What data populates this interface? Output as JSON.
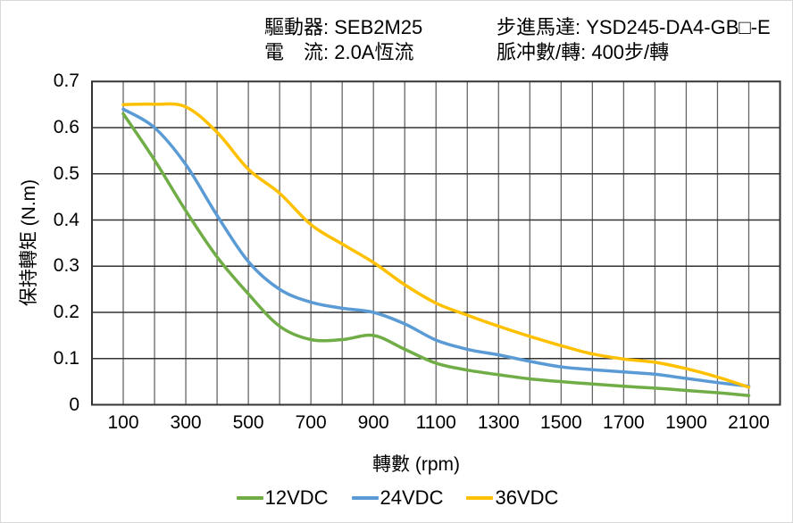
{
  "header": {
    "driver": "驅動器: SEB2M25",
    "current": "電　流: 2.0A恆流",
    "motor": "步進馬達: YSD245-DA4-GB□-E",
    "pulses": "脈冲數/轉: 400步/轉"
  },
  "chart_data": {
    "type": "line",
    "title": "",
    "xlabel": "轉數 (rpm)",
    "ylabel": "保持轉矩 (N.m)",
    "xlim": [
      0,
      2200
    ],
    "ylim": [
      0,
      0.7
    ],
    "grid": true,
    "x_grid_step": 100,
    "y_grid_step": 0.1,
    "legend_position": "bottom",
    "x_tick_labels": [
      "100",
      "300",
      "500",
      "700",
      "900",
      "1100",
      "1300",
      "1500",
      "1700",
      "1900",
      "2100"
    ],
    "x_tick_values": [
      100,
      300,
      500,
      700,
      900,
      1100,
      1300,
      1500,
      1700,
      1900,
      2100
    ],
    "y_tick_labels": [
      "0",
      "0.1",
      "0.2",
      "0.3",
      "0.4",
      "0.5",
      "0.6",
      "0.7"
    ],
    "y_tick_values": [
      0,
      0.1,
      0.2,
      0.3,
      0.4,
      0.5,
      0.6,
      0.7
    ],
    "x": [
      100,
      200,
      300,
      400,
      500,
      600,
      700,
      800,
      900,
      1000,
      1100,
      1200,
      1300,
      1400,
      1500,
      1600,
      1700,
      1800,
      1900,
      2000,
      2100
    ],
    "series": [
      {
        "name": "12VDC",
        "color": "#70AD47",
        "values": [
          0.63,
          0.53,
          0.42,
          0.32,
          0.24,
          0.17,
          0.141,
          0.141,
          0.15,
          0.12,
          0.09,
          0.075,
          0.065,
          0.056,
          0.05,
          0.045,
          0.04,
          0.036,
          0.031,
          0.026,
          0.02
        ]
      },
      {
        "name": "24VDC",
        "color": "#5B9BD5",
        "values": [
          0.64,
          0.6,
          0.52,
          0.41,
          0.31,
          0.25,
          0.222,
          0.209,
          0.2,
          0.175,
          0.14,
          0.12,
          0.108,
          0.094,
          0.082,
          0.076,
          0.071,
          0.066,
          0.057,
          0.048,
          0.04
        ]
      },
      {
        "name": "36VDC",
        "color": "#FFC000",
        "values": [
          0.65,
          0.651,
          0.645,
          0.59,
          0.51,
          0.458,
          0.39,
          0.348,
          0.308,
          0.26,
          0.22,
          0.194,
          0.17,
          0.148,
          0.128,
          0.11,
          0.099,
          0.092,
          0.078,
          0.06,
          0.038
        ]
      }
    ]
  },
  "colors": {
    "grid_vertical": "#666666",
    "grid_horizontal": "#333333",
    "plot_border": "#333333",
    "text": "#000000",
    "frame_border": "#d9d9d9"
  }
}
